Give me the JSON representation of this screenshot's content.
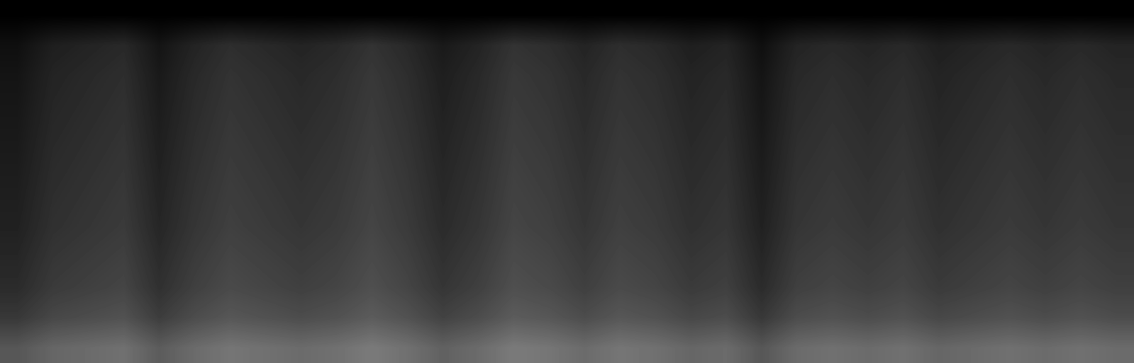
{
  "chart_data": {
    "type": "heatmap",
    "tick_labels": false,
    "color": "gray",
    "color_range": [
      0,
      100
    ],
    "values": [
      [
        0,
        0,
        0,
        0,
        0,
        0,
        0,
        0,
        0,
        0,
        0,
        0,
        0,
        0,
        0,
        0,
        0,
        0,
        0,
        0,
        0,
        0,
        0,
        0,
        0,
        0,
        0,
        0,
        0,
        0,
        0,
        0
      ],
      [
        6,
        12,
        14,
        16,
        8,
        14,
        18,
        16,
        14,
        16,
        20,
        16,
        10,
        14,
        20,
        18,
        14,
        18,
        16,
        12,
        14,
        6,
        14,
        16,
        14,
        16,
        12,
        14,
        16,
        14,
        16,
        14
      ],
      [
        8,
        14,
        16,
        18,
        10,
        16,
        20,
        18,
        16,
        18,
        22,
        18,
        12,
        16,
        22,
        20,
        16,
        20,
        18,
        14,
        16,
        8,
        16,
        18,
        16,
        18,
        14,
        16,
        18,
        16,
        18,
        16
      ],
      [
        9,
        15,
        17,
        19,
        11,
        17,
        21,
        19,
        17,
        19,
        23,
        19,
        13,
        17,
        23,
        21,
        17,
        21,
        19,
        15,
        17,
        9,
        17,
        19,
        17,
        19,
        15,
        17,
        19,
        17,
        19,
        17
      ],
      [
        10,
        16,
        18,
        20,
        12,
        18,
        22,
        20,
        18,
        20,
        24,
        20,
        14,
        18,
        24,
        22,
        18,
        22,
        20,
        16,
        18,
        10,
        18,
        20,
        18,
        20,
        16,
        18,
        20,
        18,
        20,
        18
      ],
      [
        11,
        17,
        19,
        21,
        13,
        19,
        23,
        21,
        19,
        21,
        25,
        21,
        15,
        19,
        25,
        23,
        19,
        23,
        21,
        17,
        19,
        11,
        19,
        21,
        19,
        21,
        17,
        19,
        21,
        19,
        21,
        19
      ],
      [
        12,
        18,
        20,
        22,
        14,
        20,
        24,
        22,
        20,
        22,
        26,
        22,
        16,
        20,
        26,
        24,
        20,
        24,
        22,
        18,
        20,
        12,
        20,
        22,
        20,
        22,
        18,
        20,
        22,
        20,
        22,
        20
      ],
      [
        13,
        19,
        21,
        23,
        15,
        21,
        25,
        23,
        21,
        23,
        27,
        23,
        17,
        21,
        27,
        25,
        21,
        25,
        23,
        19,
        21,
        13,
        21,
        23,
        21,
        23,
        19,
        21,
        23,
        21,
        23,
        21
      ],
      [
        15,
        21,
        23,
        25,
        17,
        23,
        27,
        25,
        23,
        25,
        29,
        25,
        19,
        23,
        29,
        27,
        23,
        27,
        25,
        21,
        23,
        15,
        23,
        25,
        23,
        25,
        21,
        23,
        25,
        23,
        25,
        23
      ],
      [
        17,
        23,
        25,
        27,
        19,
        25,
        29,
        27,
        25,
        27,
        31,
        27,
        21,
        25,
        31,
        29,
        25,
        29,
        27,
        23,
        25,
        17,
        25,
        27,
        25,
        27,
        23,
        25,
        27,
        25,
        27,
        25
      ],
      [
        22,
        28,
        30,
        32,
        24,
        30,
        34,
        32,
        30,
        32,
        36,
        32,
        26,
        30,
        36,
        34,
        30,
        34,
        32,
        28,
        30,
        22,
        30,
        32,
        30,
        32,
        28,
        30,
        32,
        30,
        32,
        30
      ],
      [
        34,
        40,
        42,
        44,
        36,
        42,
        46,
        44,
        42,
        44,
        48,
        44,
        38,
        42,
        48,
        46,
        42,
        46,
        44,
        40,
        42,
        34,
        42,
        44,
        42,
        44,
        40,
        42,
        44,
        42,
        44,
        42
      ]
    ]
  }
}
